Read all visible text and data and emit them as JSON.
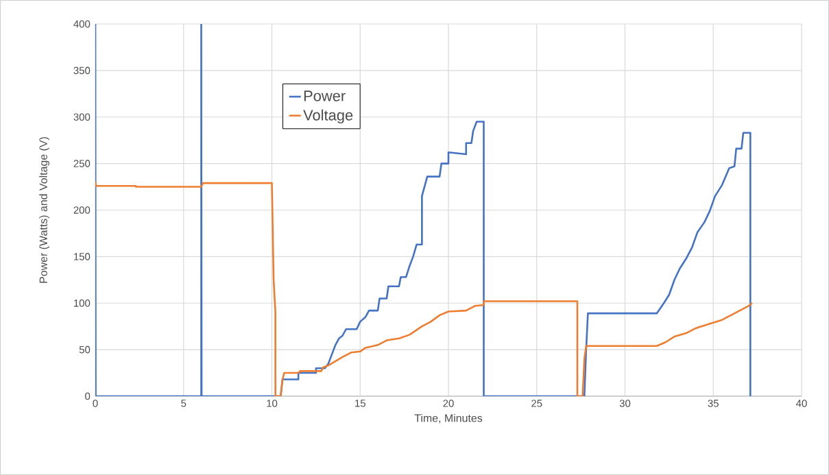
{
  "chart_data": {
    "type": "line",
    "xlabel": "Time, Minutes",
    "ylabel": "Power  (Watts) and Voltage (V)",
    "xlim": [
      0,
      40
    ],
    "ylim": [
      0,
      400
    ],
    "xticks": [
      0,
      5,
      10,
      15,
      20,
      25,
      30,
      35,
      40
    ],
    "yticks": [
      0,
      50,
      100,
      150,
      200,
      250,
      300,
      350,
      400
    ],
    "grid": true,
    "legend": "top left",
    "line_style": "solid",
    "series": [
      {
        "name": "Power",
        "color": "#4472c4",
        "x": [
          0,
          0.02,
          6,
          6,
          6.02,
          10.5,
          10.6,
          11.5,
          11.5,
          12.5,
          12.5,
          13,
          13.2,
          13.4,
          13.6,
          13.8,
          14,
          14.2,
          14.8,
          15,
          15.3,
          15.5,
          16,
          16.1,
          16.5,
          16.6,
          17.2,
          17.3,
          17.6,
          17.8,
          18,
          18.2,
          18.5,
          18.5,
          18.8,
          19.5,
          19.6,
          20,
          20,
          21,
          21,
          21.3,
          21.4,
          21.6,
          22,
          22,
          27.7,
          27.8,
          27.9,
          31.8,
          32.2,
          32.5,
          32.8,
          33.1,
          33.5,
          33.8,
          34.1,
          34.5,
          34.8,
          35.1,
          35.5,
          35.9,
          36.2,
          36.3,
          36.6,
          36.7,
          37.1,
          37.1
        ],
        "values": [
          400,
          0,
          0,
          400,
          0,
          0,
          18,
          18,
          25,
          25,
          30,
          30,
          35,
          45,
          55,
          62,
          65,
          72,
          72,
          80,
          85,
          92,
          92,
          105,
          105,
          118,
          118,
          128,
          128,
          140,
          150,
          163,
          163,
          215,
          236,
          236,
          250,
          250,
          262,
          260,
          272,
          272,
          285,
          295,
          295,
          0,
          0,
          50,
          89,
          89,
          100,
          109,
          125,
          137,
          149,
          160,
          176,
          187,
          199,
          215,
          227,
          245,
          247,
          266,
          266,
          283,
          283,
          0
        ]
      },
      {
        "name": "Voltage",
        "color": "#ed7d31",
        "x": [
          0,
          0.05,
          2.3,
          2.3,
          6,
          6.1,
          10,
          10.1,
          10.2,
          10.2,
          10.5,
          10.6,
          10.7,
          11.5,
          11.6,
          12.8,
          12.9,
          13.2,
          14,
          14.5,
          15,
          15.3,
          16,
          16.5,
          17.2,
          17.8,
          18.5,
          19,
          19.5,
          20,
          21,
          21.5,
          22,
          22,
          27.3,
          27.3,
          27.6,
          27.7,
          27.8,
          31.8,
          32.3,
          32.8,
          33.5,
          34,
          35,
          35.5,
          36,
          36.5,
          37,
          37.2
        ],
        "values": [
          230,
          226,
          226,
          225,
          225,
          229,
          229,
          125,
          90,
          0,
          0,
          18,
          25,
          25,
          27,
          27,
          31,
          33,
          42,
          47,
          48,
          52,
          55,
          60,
          62,
          66,
          75,
          80,
          87,
          91,
          92,
          97,
          98,
          102,
          102,
          0,
          0,
          40,
          54,
          54,
          58,
          64,
          68,
          73,
          79,
          82,
          87,
          92,
          97,
          100
        ]
      }
    ]
  }
}
